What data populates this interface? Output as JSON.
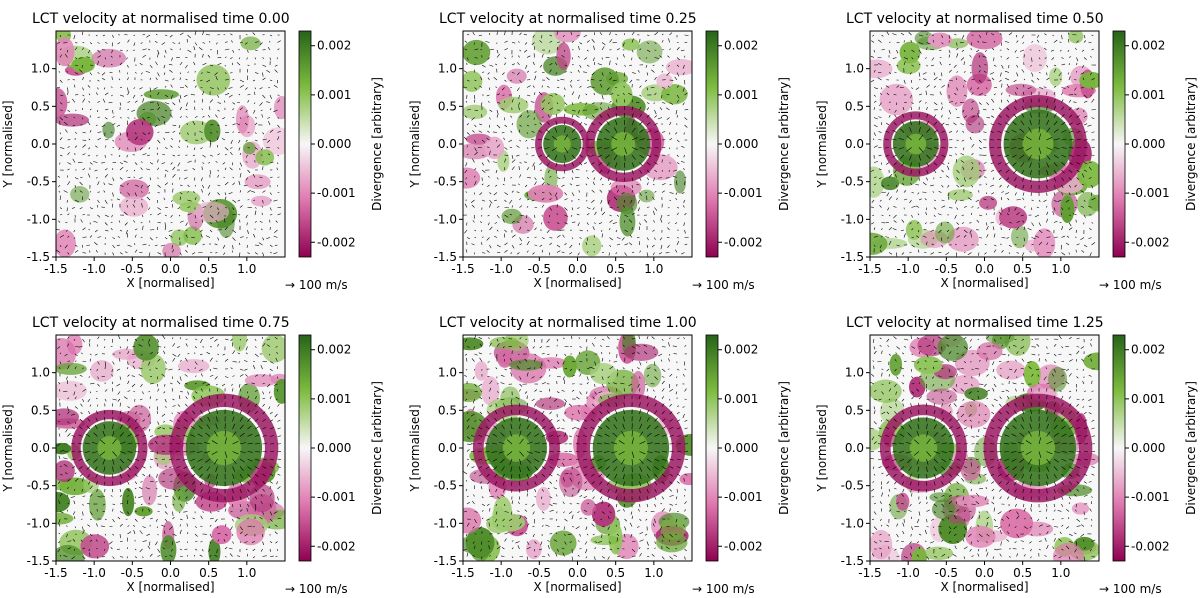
{
  "chart_data": [
    {
      "type": "heatmap",
      "title": "LCT velocity at normalised time 0.00",
      "xlabel": "X [normalised]",
      "ylabel": "Y [normalised]",
      "xlim": [
        -1.5,
        1.5
      ],
      "ylim": [
        -1.5,
        1.5
      ],
      "x_ticks": [
        "-1.5",
        "-1.0",
        "-0.5",
        "0.0",
        "0.5",
        "1.0"
      ],
      "y_ticks": [
        "1.0",
        "0.5",
        "0.0",
        "-0.5",
        "-1.0",
        "-1.5"
      ],
      "colorbar": {
        "label": "Divergence [arbitrary]",
        "range": [
          -0.0023,
          0.0023
        ],
        "ticks": [
          "0.002",
          "0.001",
          "0.000",
          "-0.001",
          "-0.002"
        ]
      },
      "quiver_key": "→ 100 m/s",
      "features": []
    },
    {
      "type": "heatmap",
      "title": "LCT velocity at normalised time 0.25",
      "xlabel": "X [normalised]",
      "ylabel": "Y [normalised]",
      "xlim": [
        -1.5,
        1.5
      ],
      "ylim": [
        -1.5,
        1.5
      ],
      "x_ticks": [
        "-1.5",
        "-1.0",
        "-0.5",
        "0.0",
        "0.5",
        "1.0"
      ],
      "y_ticks": [
        "1.0",
        "0.5",
        "0.0",
        "-0.5",
        "-1.0",
        "-1.5"
      ],
      "colorbar": {
        "label": "Divergence [arbitrary]",
        "range": [
          -0.0023,
          0.0023
        ],
        "ticks": [
          "0.002",
          "0.001",
          "0.000",
          "-0.001",
          "-0.002"
        ]
      },
      "quiver_key": "→ 100 m/s",
      "features": [
        {
          "x": 0.6,
          "y": 0.0,
          "r": 0.35
        },
        {
          "x": -0.2,
          "y": 0.0,
          "r": 0.25
        }
      ]
    },
    {
      "type": "heatmap",
      "title": "LCT velocity at normalised time 0.50",
      "xlabel": "X [normalised]",
      "ylabel": "Y [normalised]",
      "xlim": [
        -1.5,
        1.5
      ],
      "ylim": [
        -1.5,
        1.5
      ],
      "x_ticks": [
        "-1.5",
        "-1.0",
        "-0.5",
        "0.0",
        "0.5",
        "1.0"
      ],
      "y_ticks": [
        "1.0",
        "0.5",
        "0.0",
        "-0.5",
        "-1.0",
        "-1.5"
      ],
      "colorbar": {
        "label": "Divergence [arbitrary]",
        "range": [
          -0.0023,
          0.0023
        ],
        "ticks": [
          "0.002",
          "0.001",
          "0.000",
          "-0.001",
          "-0.002"
        ]
      },
      "quiver_key": "→ 100 m/s",
      "features": [
        {
          "x": 0.7,
          "y": 0.0,
          "r": 0.45
        },
        {
          "x": -0.9,
          "y": 0.0,
          "r": 0.3
        }
      ]
    },
    {
      "type": "heatmap",
      "title": "LCT velocity at normalised time 0.75",
      "xlabel": "X [normalised]",
      "ylabel": "Y [normalised]",
      "xlim": [
        -1.5,
        1.5
      ],
      "ylim": [
        -1.5,
        1.5
      ],
      "x_ticks": [
        "-1.5",
        "-1.0",
        "-0.5",
        "0.0",
        "0.5",
        "1.0"
      ],
      "y_ticks": [
        "1.0",
        "0.5",
        "0.0",
        "-0.5",
        "-1.0",
        "-1.5"
      ],
      "colorbar": {
        "label": "Divergence [arbitrary]",
        "range": [
          -0.0023,
          0.0023
        ],
        "ticks": [
          "0.002",
          "0.001",
          "0.000",
          "-0.001",
          "-0.002"
        ]
      },
      "quiver_key": "→ 100 m/s",
      "features": [
        {
          "x": 0.7,
          "y": 0.0,
          "r": 0.5
        },
        {
          "x": -0.8,
          "y": 0.0,
          "r": 0.35
        }
      ]
    },
    {
      "type": "heatmap",
      "title": "LCT velocity at normalised time 1.00",
      "xlabel": "X [normalised]",
      "ylabel": "Y [normalised]",
      "xlim": [
        -1.5,
        1.5
      ],
      "ylim": [
        -1.5,
        1.5
      ],
      "x_ticks": [
        "-1.5",
        "-1.0",
        "-0.5",
        "0.0",
        "0.5",
        "1.0"
      ],
      "y_ticks": [
        "1.0",
        "0.5",
        "0.0",
        "-0.5",
        "-1.0",
        "-1.5"
      ],
      "colorbar": {
        "label": "Divergence [arbitrary]",
        "range": [
          -0.0023,
          0.0023
        ],
        "ticks": [
          "0.002",
          "0.001",
          "0.000",
          "-0.001",
          "-0.002"
        ]
      },
      "quiver_key": "→ 100 m/s",
      "features": [
        {
          "x": 0.7,
          "y": 0.0,
          "r": 0.5
        },
        {
          "x": -0.8,
          "y": 0.0,
          "r": 0.4
        }
      ]
    },
    {
      "type": "heatmap",
      "title": "LCT velocity at normalised time 1.25",
      "xlabel": "X [normalised]",
      "ylabel": "Y [normalised]",
      "xlim": [
        -1.5,
        1.5
      ],
      "ylim": [
        -1.5,
        1.5
      ],
      "x_ticks": [
        "-1.5",
        "-1.0",
        "-0.5",
        "0.0",
        "0.5",
        "1.0"
      ],
      "y_ticks": [
        "1.0",
        "0.5",
        "0.0",
        "-0.5",
        "-1.0",
        "-1.5"
      ],
      "colorbar": {
        "label": "Divergence [arbitrary]",
        "range": [
          -0.0023,
          0.0023
        ],
        "ticks": [
          "0.002",
          "0.001",
          "0.000",
          "-0.001",
          "-0.002"
        ]
      },
      "quiver_key": "→ 100 m/s",
      "features": [
        {
          "x": 0.7,
          "y": 0.0,
          "r": 0.5
        },
        {
          "x": -0.8,
          "y": 0.0,
          "r": 0.4
        }
      ]
    }
  ],
  "colors": {
    "green_dark": "#276419",
    "green_mid": "#7fbc41",
    "white": "#f7f7f7",
    "pink_mid": "#de77ae",
    "pink_dark": "#8e0152",
    "arrow": "#000000"
  }
}
